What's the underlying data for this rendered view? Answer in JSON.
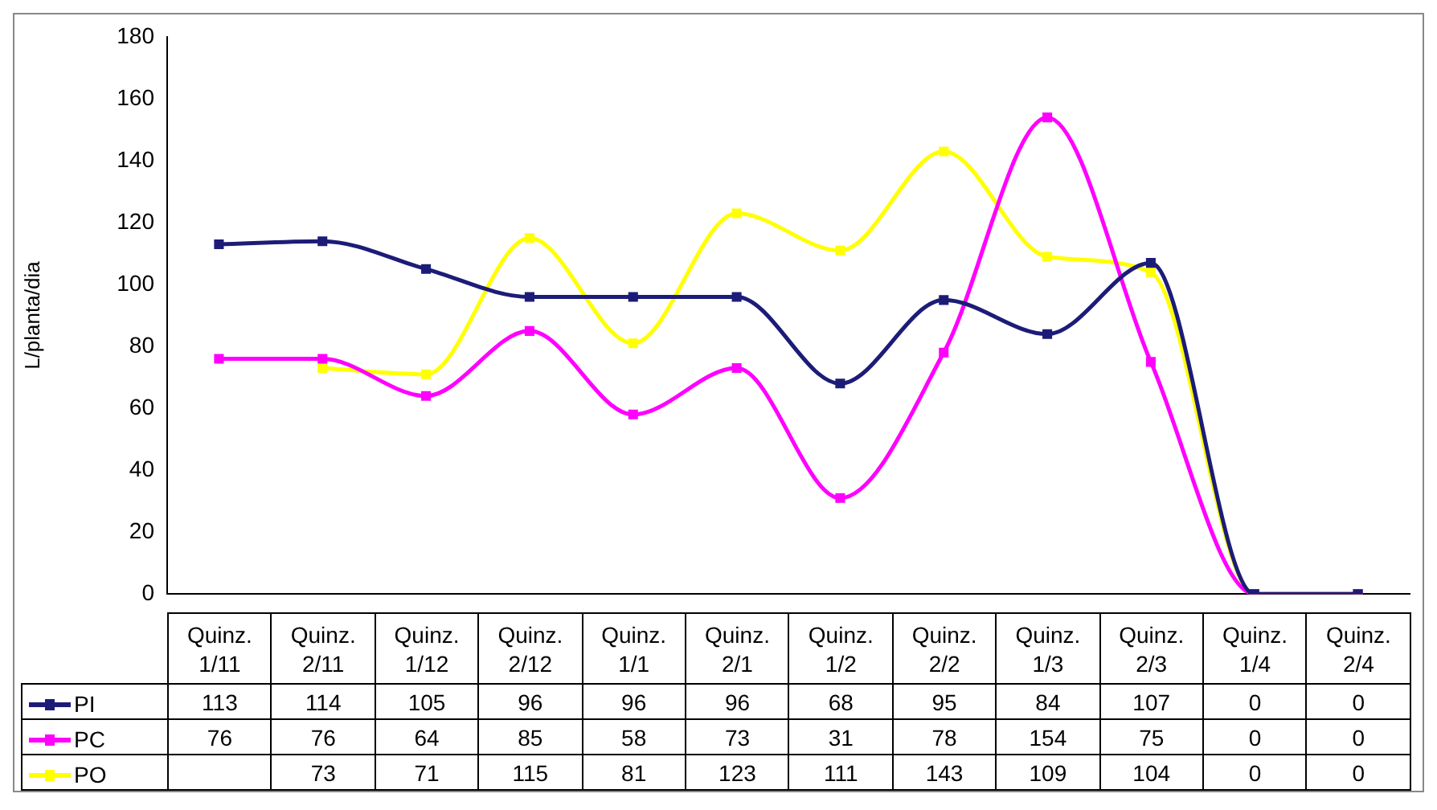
{
  "chart_data": {
    "type": "line",
    "ylabel": "L/planta/dia",
    "categories": [
      "Quinz. 1/11",
      "Quinz. 2/11",
      "Quinz. 1/12",
      "Quinz. 2/12",
      "Quinz. 1/1",
      "Quinz. 2/1",
      "Quinz. 1/2",
      "Quinz. 2/2",
      "Quinz. 1/3",
      "Quinz. 2/3",
      "Quinz. 1/4",
      "Quinz. 2/4"
    ],
    "series": [
      {
        "name": "PI",
        "color": "#1c1c78",
        "values": [
          113,
          114,
          105,
          96,
          96,
          96,
          68,
          95,
          84,
          107,
          0,
          0
        ]
      },
      {
        "name": "PC",
        "color": "#ff00ff",
        "values": [
          76,
          76,
          64,
          85,
          58,
          73,
          31,
          78,
          154,
          75,
          0,
          0
        ]
      },
      {
        "name": "PO",
        "color": "#ffff00",
        "values": [
          null,
          73,
          71,
          115,
          81,
          123,
          111,
          143,
          109,
          104,
          0,
          0
        ]
      }
    ],
    "ylim": [
      0,
      180
    ],
    "yticks": [
      0,
      20,
      40,
      60,
      80,
      100,
      120,
      140,
      160,
      180
    ],
    "grid": false,
    "legend": "bottom",
    "marker": "square",
    "line_style": "solid",
    "data_labels": true
  }
}
